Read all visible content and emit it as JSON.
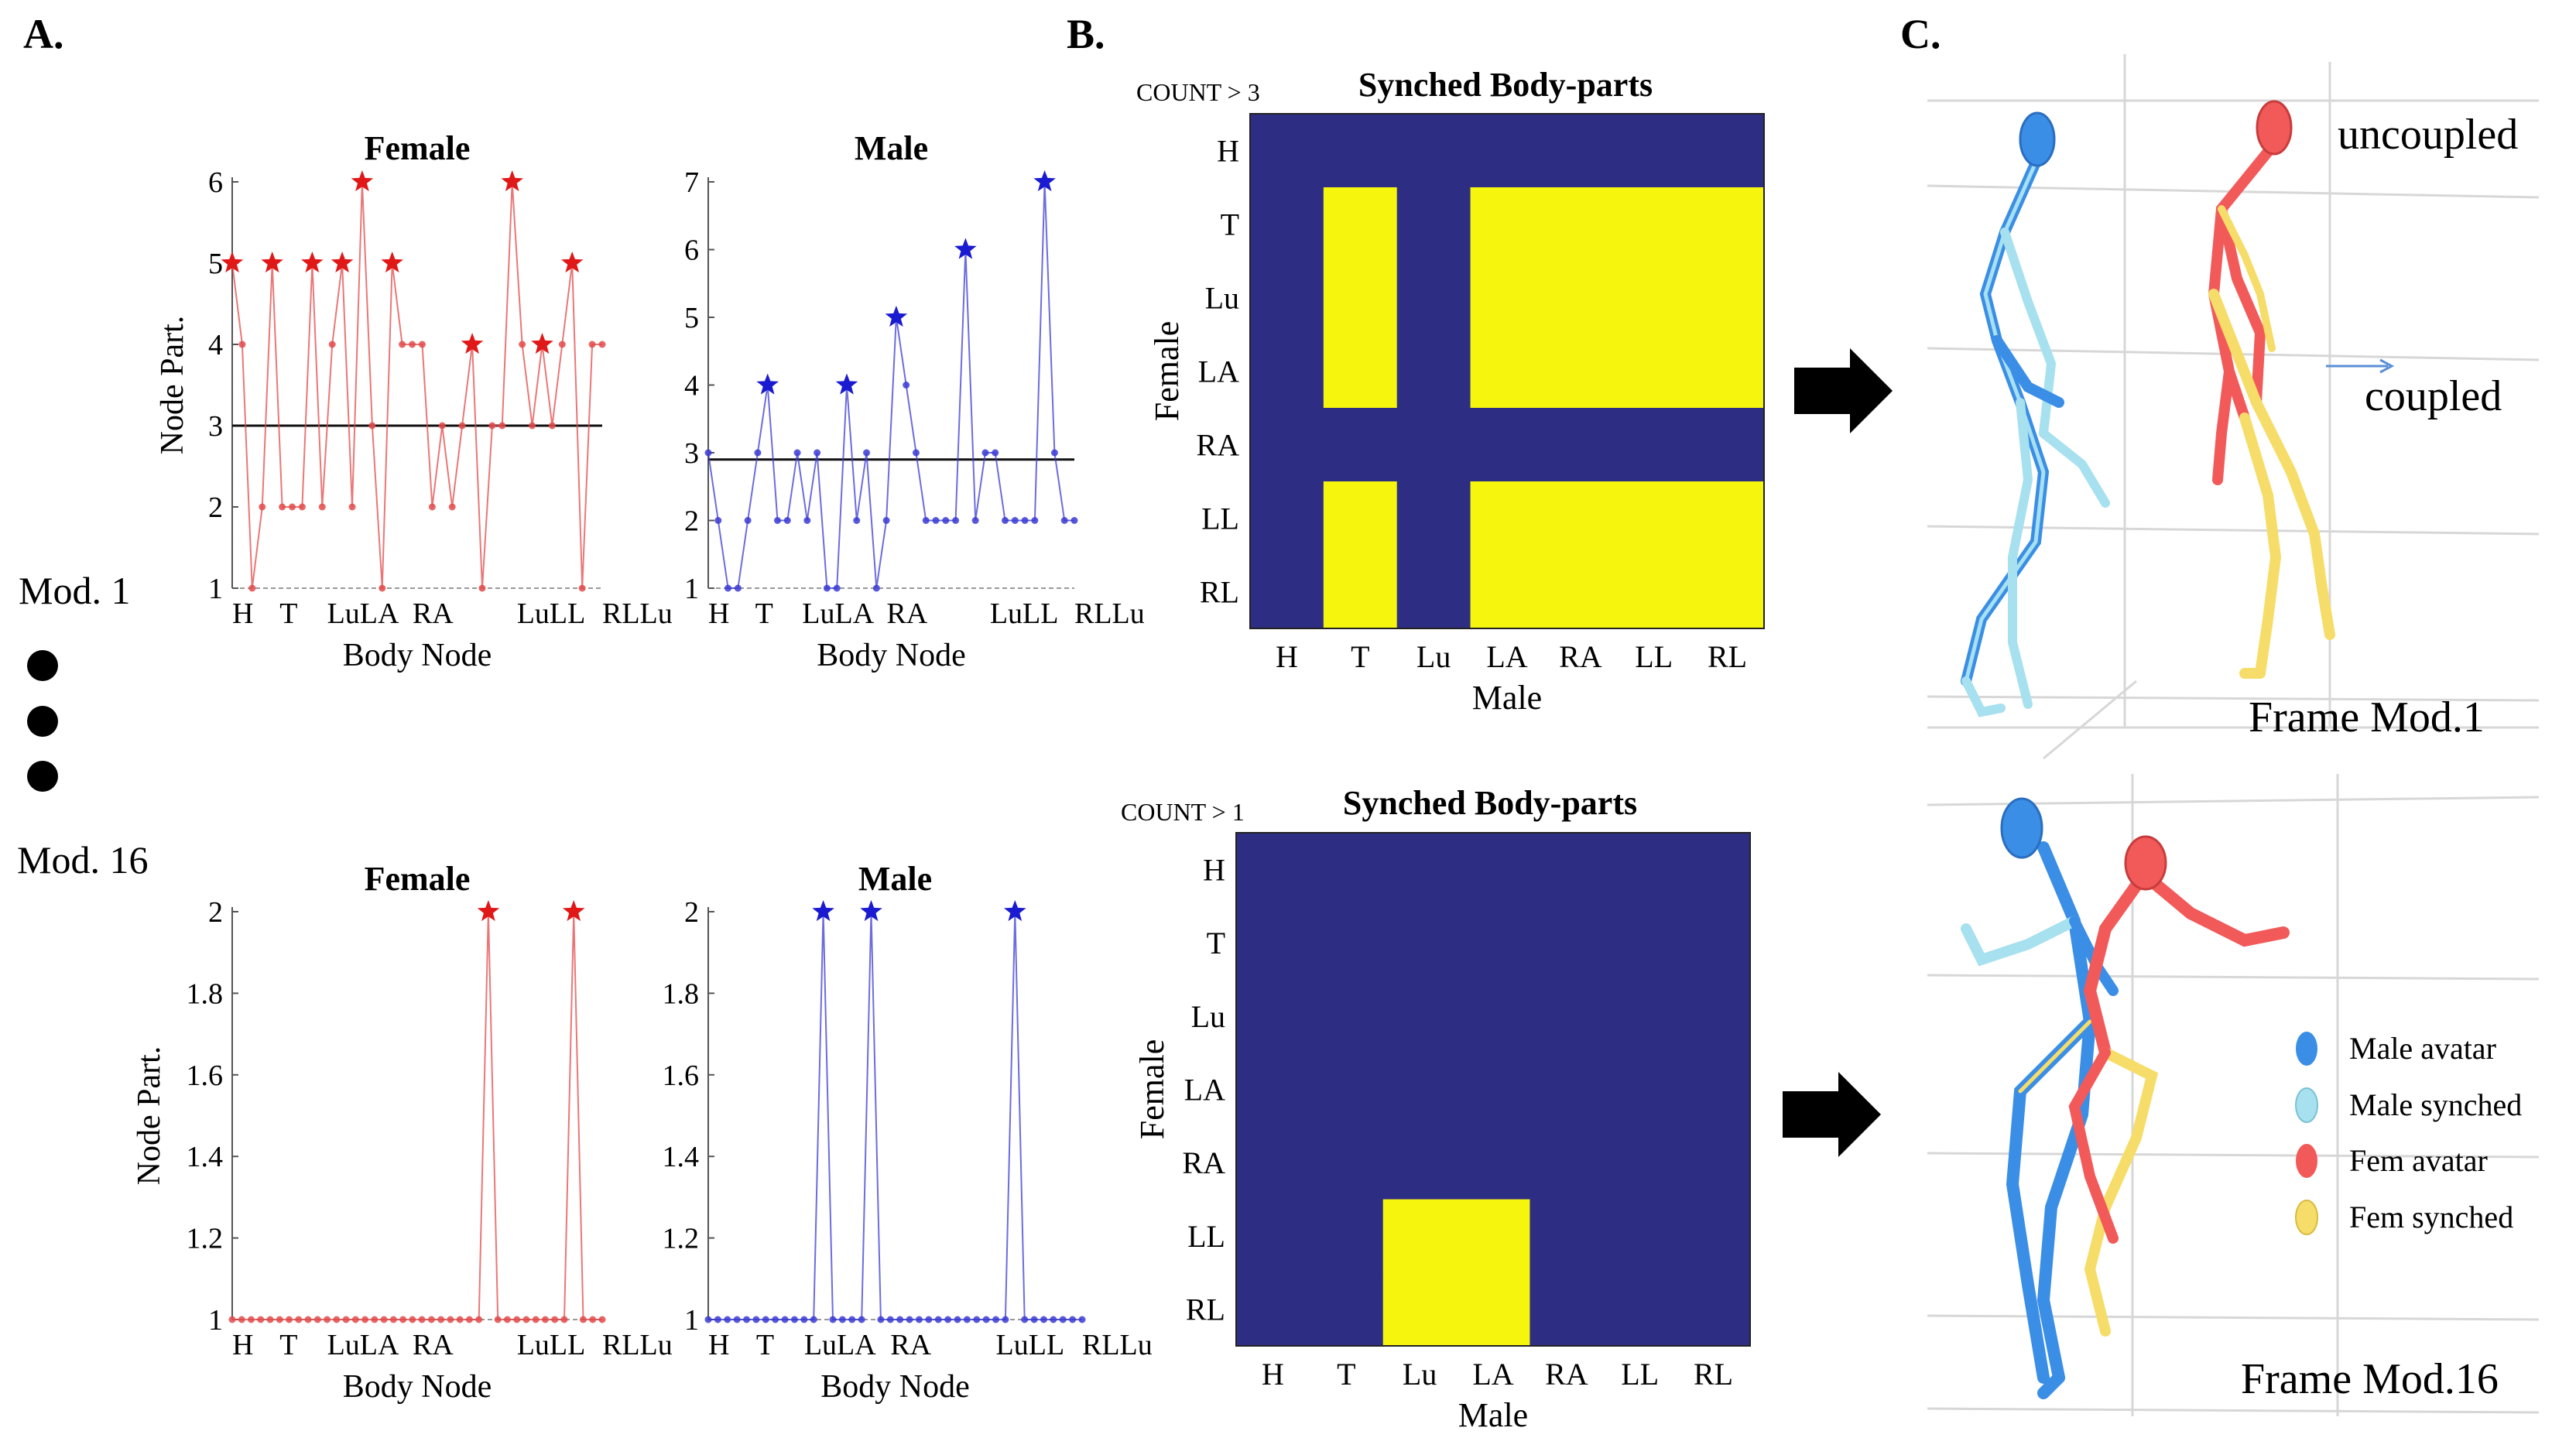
{
  "panels": {
    "a": "A.",
    "b": "B.",
    "c": "C."
  },
  "row_labels": {
    "mod1": "Mod. 1",
    "mod16": "Mod. 16"
  },
  "heatmap_colors": {
    "off": "#2e2d84",
    "on": "#f5f50e"
  },
  "figure_c": {
    "uncoupled": "uncoupled",
    "coupled": "coupled",
    "frame_top": "Frame Mod.1",
    "frame_bottom": "Frame Mod.16",
    "legend": [
      {
        "label": "Male avatar",
        "color": "#3a8ee6"
      },
      {
        "label": "Male synched",
        "color": "#a7e0ee"
      },
      {
        "label": "Fem avatar",
        "color": "#f25a5a"
      },
      {
        "label": "Fem synched",
        "color": "#f6dd6a"
      }
    ],
    "colors": {
      "male": "#3a8ee6",
      "male_sync": "#a7e0ee",
      "female": "#f25a5a",
      "female_sync": "#f6dd6a"
    }
  },
  "chart_data": [
    {
      "id": "line-mod1-female",
      "type": "line",
      "title": "Female",
      "xlabel": "Body Node",
      "ylabel": "Node Part.",
      "color": "#e34a4a",
      "ylim": [
        1,
        6
      ],
      "yticks": [
        "1",
        "2",
        "3",
        "4",
        "5",
        "6"
      ],
      "xticks": [
        "H",
        "T",
        "LuLA",
        "RA",
        "LuLL",
        "RLLu"
      ],
      "xtick_index": [
        0,
        5,
        10,
        19,
        30,
        39
      ],
      "threshold": 3,
      "values": [
        5,
        4,
        1,
        2,
        5,
        2,
        2,
        2,
        5,
        2,
        4,
        5,
        2,
        6,
        3,
        1,
        5,
        4,
        4,
        4,
        2,
        3,
        2,
        3,
        4,
        1,
        3,
        3,
        6,
        4,
        3,
        4,
        3,
        4,
        5,
        1,
        4,
        4
      ],
      "peaks": [
        0,
        4,
        8,
        11,
        13,
        16,
        24,
        28,
        31,
        34
      ]
    },
    {
      "id": "line-mod1-male",
      "type": "line",
      "title": "Male",
      "xlabel": "Body Node",
      "ylabel": "",
      "color": "#3b3bd4",
      "ylim": [
        1,
        7
      ],
      "yticks": [
        "1",
        "2",
        "3",
        "4",
        "5",
        "6",
        "7"
      ],
      "xticks": [
        "H",
        "T",
        "LuLA",
        "RA",
        "LuLL",
        "RLLu"
      ],
      "xtick_index": [
        0,
        5,
        10,
        19,
        30,
        39
      ],
      "threshold": 2.9,
      "values": [
        3,
        2,
        1,
        1,
        2,
        3,
        4,
        2,
        2,
        3,
        2,
        3,
        1,
        1,
        4,
        2,
        3,
        1,
        2,
        5,
        4,
        3,
        2,
        2,
        2,
        2,
        6,
        2,
        3,
        3,
        2,
        2,
        2,
        2,
        7,
        3,
        2,
        2
      ],
      "peaks": [
        6,
        14,
        19,
        26,
        34
      ]
    },
    {
      "id": "line-mod16-female",
      "type": "line",
      "title": "Female",
      "xlabel": "Body Node",
      "ylabel": "Node Part.",
      "color": "#e34a4a",
      "ylim": [
        1,
        2
      ],
      "yticks": [
        "1",
        "1.2",
        "1.4",
        "1.6",
        "1.8",
        "2"
      ],
      "xticks": [
        "H",
        "T",
        "LuLA",
        "RA",
        "LuLL",
        "RLLu"
      ],
      "xtick_index": [
        0,
        5,
        10,
        19,
        30,
        39
      ],
      "values": [
        1,
        1,
        1,
        1,
        1,
        1,
        1,
        1,
        1,
        1,
        1,
        1,
        1,
        1,
        1,
        1,
        1,
        1,
        1,
        1,
        1,
        1,
        1,
        1,
        1,
        1,
        1,
        2,
        1,
        1,
        1,
        1,
        1,
        1,
        1,
        1,
        2,
        1,
        1,
        1
      ],
      "peaks": [
        27,
        36
      ]
    },
    {
      "id": "line-mod16-male",
      "type": "line",
      "title": "Male",
      "xlabel": "Body Node",
      "ylabel": "",
      "color": "#3b3bd4",
      "ylim": [
        1,
        2
      ],
      "yticks": [
        "1",
        "1.2",
        "1.4",
        "1.6",
        "1.8",
        "2"
      ],
      "xticks": [
        "H",
        "T",
        "LuLA",
        "RA",
        "LuLL",
        "RLLu"
      ],
      "xtick_index": [
        0,
        5,
        10,
        19,
        30,
        39
      ],
      "values": [
        1,
        1,
        1,
        1,
        1,
        1,
        1,
        1,
        1,
        1,
        1,
        1,
        1,
        1,
        1,
        1,
        1,
        1,
        1,
        1,
        1,
        1,
        1,
        1,
        1,
        1,
        1,
        1,
        1,
        1,
        1,
        1,
        1,
        1,
        1,
        1,
        1,
        1,
        1,
        1,
        1,
        1,
        1,
        1,
        1,
        1,
        1,
        1,
        1,
        1,
        1,
        1,
        1,
        1,
        1,
        1,
        1,
        1,
        1,
        1,
        1,
        1,
        1,
        1,
        1,
        1,
        1,
        1,
        1,
        1,
        1,
        1
      ],
      "values_note": "",
      "peaks_values": [
        12,
        17,
        32
      ],
      "peaks": []
    },
    {
      "id": "heatmap-mod1",
      "type": "heatmap",
      "title": "Synched Body-parts",
      "threshold_label": "COUNT > 3",
      "xlabel": "Male",
      "ylabel": "Female",
      "rows": [
        "H",
        "T",
        "Lu",
        "LA",
        "RA",
        "LL",
        "RL"
      ],
      "cols": [
        "H",
        "T",
        "Lu",
        "LA",
        "RA",
        "LL",
        "RL"
      ],
      "matrix": [
        [
          0,
          0,
          0,
          0,
          0,
          0,
          0
        ],
        [
          0,
          1,
          0,
          1,
          1,
          1,
          1
        ],
        [
          0,
          1,
          0,
          1,
          1,
          1,
          1
        ],
        [
          0,
          1,
          0,
          1,
          1,
          1,
          1
        ],
        [
          0,
          0,
          0,
          0,
          0,
          0,
          0
        ],
        [
          0,
          1,
          0,
          1,
          1,
          1,
          1
        ],
        [
          0,
          1,
          0,
          1,
          1,
          1,
          1
        ]
      ]
    },
    {
      "id": "heatmap-mod16",
      "type": "heatmap",
      "title": "Synched Body-parts",
      "threshold_label": "COUNT > 1",
      "xlabel": "Male",
      "ylabel": "Female",
      "rows": [
        "H",
        "T",
        "Lu",
        "LA",
        "RA",
        "LL",
        "RL"
      ],
      "cols": [
        "H",
        "T",
        "Lu",
        "LA",
        "RA",
        "LL",
        "RL"
      ],
      "matrix": [
        [
          0,
          0,
          0,
          0,
          0,
          0,
          0
        ],
        [
          0,
          0,
          0,
          0,
          0,
          0,
          0
        ],
        [
          0,
          0,
          0,
          0,
          0,
          0,
          0
        ],
        [
          0,
          0,
          0,
          0,
          0,
          0,
          0
        ],
        [
          0,
          0,
          0,
          0,
          0,
          0,
          0
        ],
        [
          0,
          0,
          1,
          1,
          0,
          0,
          0
        ],
        [
          0,
          0,
          1,
          1,
          0,
          0,
          0
        ]
      ]
    }
  ]
}
